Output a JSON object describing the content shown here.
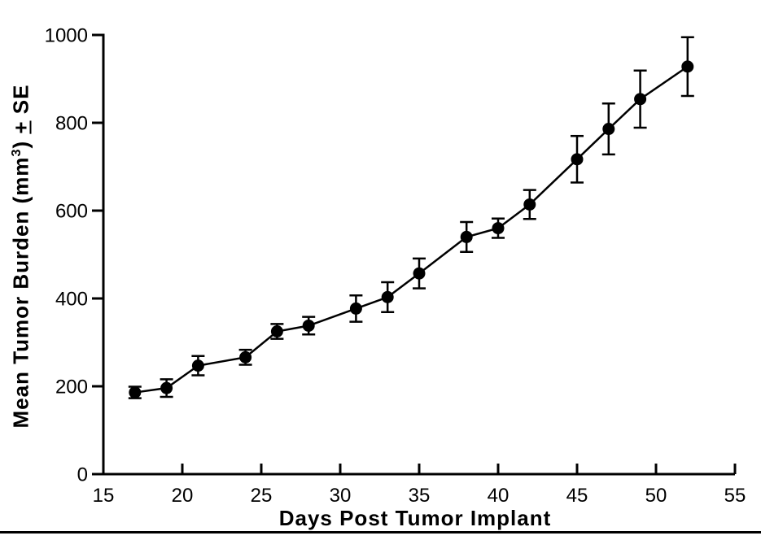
{
  "figure": {
    "background": "#ffffff",
    "foreground": "#000000",
    "bottom_rule": true
  },
  "chart_data": {
    "type": "line",
    "title": "",
    "xlabel": "Days Post Tumor Implant",
    "ylabel_text": "Mean Tumor Burden (mm3) +/- SE",
    "ylabel_parts": {
      "prefix": "Mean Tumor Burden (mm",
      "sup": "3",
      "mid": ") ",
      "pm": "+",
      "end": " SE"
    },
    "xlim": [
      15,
      55
    ],
    "ylim": [
      0,
      1000
    ],
    "x_ticks": [
      15,
      20,
      25,
      30,
      35,
      40,
      45,
      50,
      55
    ],
    "y_ticks": [
      0,
      200,
      400,
      600,
      800,
      1000
    ],
    "grid": false,
    "legend": "none",
    "marker": "filled-circle",
    "error_bars": "plus-minus-SE-with-caps",
    "color": "#000000",
    "series": [
      {
        "name": "Mean tumor burden",
        "points": [
          {
            "x": 17,
            "y": 186,
            "se": 13
          },
          {
            "x": 19,
            "y": 196,
            "se": 20
          },
          {
            "x": 21,
            "y": 247,
            "se": 22
          },
          {
            "x": 24,
            "y": 266,
            "se": 17
          },
          {
            "x": 26,
            "y": 325,
            "se": 17
          },
          {
            "x": 28,
            "y": 338,
            "se": 20
          },
          {
            "x": 31,
            "y": 377,
            "se": 30
          },
          {
            "x": 33,
            "y": 403,
            "se": 34
          },
          {
            "x": 35,
            "y": 457,
            "se": 34
          },
          {
            "x": 38,
            "y": 540,
            "se": 34
          },
          {
            "x": 40,
            "y": 560,
            "se": 22
          },
          {
            "x": 42,
            "y": 614,
            "se": 33
          },
          {
            "x": 45,
            "y": 717,
            "se": 53
          },
          {
            "x": 47,
            "y": 786,
            "se": 58
          },
          {
            "x": 49,
            "y": 854,
            "se": 65
          },
          {
            "x": 52,
            "y": 928,
            "se": 67
          }
        ]
      }
    ]
  }
}
